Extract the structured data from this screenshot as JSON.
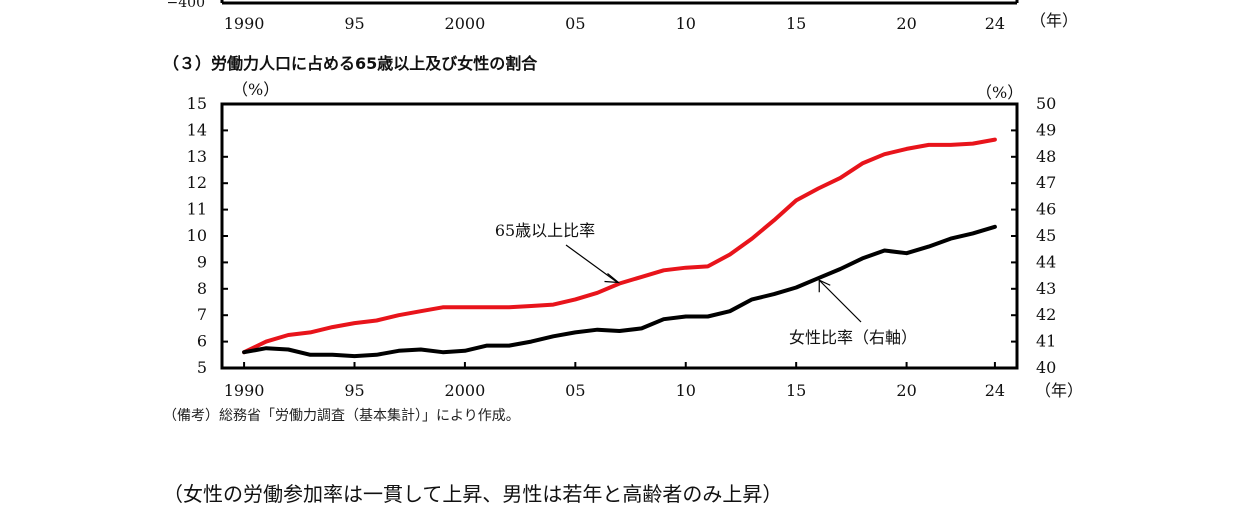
{
  "top_fragment": {
    "ytick": "−400",
    "xticks": [
      "1990",
      "95",
      "2000",
      "05",
      "10",
      "15",
      "20",
      "24"
    ],
    "xunit": "（年）"
  },
  "panel_title": "（３）労働力人口に占める65歳以上及び女性の割合",
  "source_note": "（備考）総務省「労働力調査（基本集計）」により作成。",
  "bottom_heading": "（女性の労働参加率は一貫して上昇、男性は若年と高齢者のみ上昇）",
  "colors": {
    "senior_line": "#e8141b",
    "female_line": "#000000",
    "frame": "#000000"
  },
  "chart_data": {
    "type": "line",
    "x_ticks": [
      "1990",
      "95",
      "2000",
      "05",
      "10",
      "15",
      "20",
      "24"
    ],
    "x_tick_values": [
      1990,
      1995,
      2000,
      2005,
      2010,
      2015,
      2020,
      2024
    ],
    "xunit": "（年）",
    "xlim": [
      1989,
      2025
    ],
    "left_axis": {
      "unit": "（%）",
      "ylim": [
        5,
        15
      ],
      "ticks": [
        "15",
        "14",
        "13",
        "12",
        "11",
        "10",
        "9",
        "8",
        "7",
        "6",
        "5"
      ]
    },
    "right_axis": {
      "unit": "（%）",
      "ylim": [
        40,
        50
      ],
      "ticks": [
        "50",
        "49",
        "48",
        "47",
        "46",
        "45",
        "44",
        "43",
        "42",
        "41",
        "40"
      ]
    },
    "x": [
      1990,
      1991,
      1992,
      1993,
      1994,
      1995,
      1996,
      1997,
      1998,
      1999,
      2000,
      2001,
      2002,
      2003,
      2004,
      2005,
      2006,
      2007,
      2008,
      2009,
      2010,
      2011,
      2012,
      2013,
      2014,
      2015,
      2016,
      2017,
      2018,
      2019,
      2020,
      2021,
      2022,
      2023,
      2024
    ],
    "series": [
      {
        "name": "65歳以上比率",
        "axis": "left",
        "values": [
          5.6,
          6.0,
          6.25,
          6.35,
          6.55,
          6.7,
          6.8,
          7.0,
          7.15,
          7.3,
          7.3,
          7.3,
          7.3,
          7.35,
          7.4,
          7.6,
          7.85,
          8.2,
          8.45,
          8.7,
          8.8,
          8.85,
          9.3,
          9.9,
          10.6,
          11.35,
          11.8,
          12.2,
          12.75,
          13.1,
          13.3,
          13.45,
          13.45,
          13.5,
          13.65
        ]
      },
      {
        "name": "女性比率（右軸）",
        "axis": "right",
        "values": [
          40.6,
          40.75,
          40.7,
          40.5,
          40.5,
          40.45,
          40.5,
          40.65,
          40.7,
          40.6,
          40.65,
          40.85,
          40.85,
          41.0,
          41.2,
          41.35,
          41.45,
          41.4,
          41.5,
          41.85,
          41.95,
          41.95,
          42.15,
          42.6,
          42.8,
          43.05,
          43.4,
          43.75,
          44.15,
          44.45,
          44.35,
          44.6,
          44.9,
          45.1,
          45.35
        ]
      }
    ],
    "annotations": [
      {
        "text": "65歳以上比率",
        "series": 0,
        "x": 2007
      },
      {
        "text": "女性比率（右軸）",
        "series": 1,
        "x": 2016
      }
    ]
  }
}
